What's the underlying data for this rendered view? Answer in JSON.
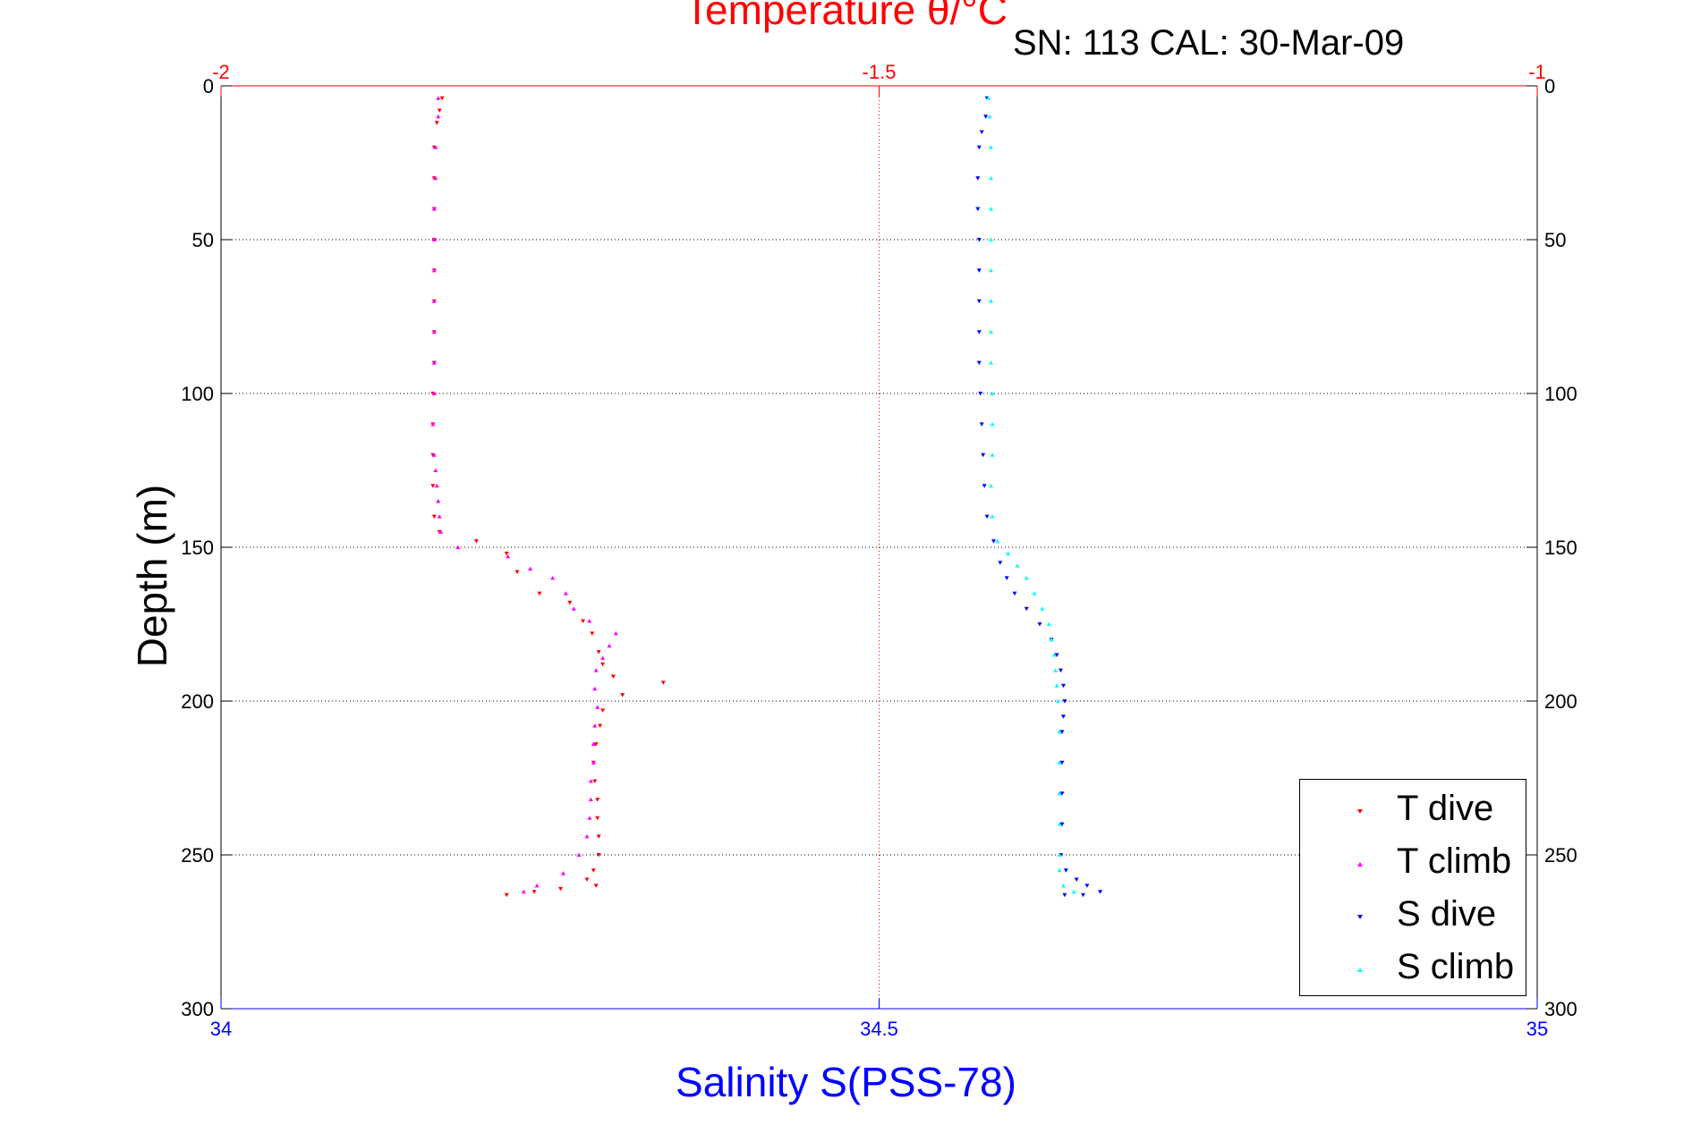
{
  "sn_label": "SN: 113  CAL: 30-Mar-09",
  "colors": {
    "temperature": "#ff0000",
    "salinity": "#0000ff",
    "t_dive": "#ff0000",
    "t_climb": "#ff00ff",
    "s_dive": "#0000ff",
    "s_climb": "#00ffff"
  },
  "chart_data": {
    "type": "scatter",
    "title": "Temperature θ/°C",
    "xlabel": "Salinity S(PSS-78)",
    "ylabel": "Depth (m)",
    "x_top": {
      "label": "Temperature θ/°C",
      "range": [
        -2,
        -1
      ],
      "ticks": [
        -2,
        -1.5,
        -1
      ],
      "tick_labels": [
        "-2",
        "-1.5",
        "-1"
      ]
    },
    "x_bottom": {
      "label": "Salinity S(PSS-78)",
      "range": [
        34,
        35
      ],
      "ticks": [
        34,
        34.5,
        35
      ],
      "tick_labels": [
        "34",
        "34.5",
        "35"
      ]
    },
    "y": {
      "range": [
        0,
        300
      ],
      "reversed": true,
      "ticks": [
        0,
        50,
        100,
        150,
        200,
        250,
        300
      ],
      "tick_labels": [
        "0",
        "50",
        "100",
        "150",
        "200",
        "250",
        "300"
      ]
    },
    "grid": true,
    "legend_position": "bottom-right",
    "series": [
      {
        "name": "T dive",
        "axis": "top",
        "marker": "triangle-down",
        "points": [
          [
            -1.832,
            4
          ],
          [
            -1.834,
            8
          ],
          [
            -1.836,
            12
          ],
          [
            -1.838,
            20
          ],
          [
            -1.838,
            30
          ],
          [
            -1.838,
            40
          ],
          [
            -1.838,
            50
          ],
          [
            -1.838,
            60
          ],
          [
            -1.838,
            70
          ],
          [
            -1.838,
            80
          ],
          [
            -1.838,
            90
          ],
          [
            -1.839,
            100
          ],
          [
            -1.839,
            110
          ],
          [
            -1.839,
            120
          ],
          [
            -1.839,
            130
          ],
          [
            -1.838,
            140
          ],
          [
            -1.834,
            145
          ],
          [
            -1.806,
            148
          ],
          [
            -1.783,
            152
          ],
          [
            -1.775,
            158
          ],
          [
            -1.758,
            165
          ],
          [
            -1.735,
            168
          ],
          [
            -1.725,
            174
          ],
          [
            -1.718,
            178
          ],
          [
            -1.713,
            184
          ],
          [
            -1.71,
            188
          ],
          [
            -1.702,
            192
          ],
          [
            -1.664,
            194
          ],
          [
            -1.695,
            198
          ],
          [
            -1.71,
            203
          ],
          [
            -1.712,
            208
          ],
          [
            -1.715,
            214
          ],
          [
            -1.717,
            220
          ],
          [
            -1.716,
            226
          ],
          [
            -1.714,
            232
          ],
          [
            -1.714,
            238
          ],
          [
            -1.713,
            244
          ],
          [
            -1.713,
            250
          ],
          [
            -1.717,
            255
          ],
          [
            -1.722,
            258
          ],
          [
            -1.715,
            260
          ],
          [
            -1.742,
            261
          ],
          [
            -1.762,
            262
          ],
          [
            -1.783,
            263
          ]
        ]
      },
      {
        "name": "T climb",
        "axis": "top",
        "marker": "triangle-up",
        "points": [
          [
            -1.835,
            4
          ],
          [
            -1.835,
            10
          ],
          [
            -1.837,
            20
          ],
          [
            -1.837,
            30
          ],
          [
            -1.838,
            40
          ],
          [
            -1.838,
            50
          ],
          [
            -1.838,
            60
          ],
          [
            -1.838,
            70
          ],
          [
            -1.838,
            80
          ],
          [
            -1.838,
            90
          ],
          [
            -1.838,
            100
          ],
          [
            -1.839,
            110
          ],
          [
            -1.838,
            120
          ],
          [
            -1.837,
            125
          ],
          [
            -1.836,
            130
          ],
          [
            -1.835,
            135
          ],
          [
            -1.834,
            140
          ],
          [
            -1.833,
            145
          ],
          [
            -1.82,
            150
          ],
          [
            -1.782,
            153
          ],
          [
            -1.765,
            157
          ],
          [
            -1.748,
            160
          ],
          [
            -1.738,
            165
          ],
          [
            -1.732,
            170
          ],
          [
            -1.72,
            174
          ],
          [
            -1.7,
            178
          ],
          [
            -1.705,
            182
          ],
          [
            -1.71,
            186
          ],
          [
            -1.715,
            190
          ],
          [
            -1.716,
            196
          ],
          [
            -1.714,
            202
          ],
          [
            -1.716,
            208
          ],
          [
            -1.717,
            214
          ],
          [
            -1.717,
            220
          ],
          [
            -1.719,
            226
          ],
          [
            -1.719,
            232
          ],
          [
            -1.72,
            238
          ],
          [
            -1.722,
            244
          ],
          [
            -1.728,
            250
          ],
          [
            -1.74,
            256
          ],
          [
            -1.76,
            260
          ],
          [
            -1.77,
            262
          ]
        ]
      },
      {
        "name": "S dive",
        "axis": "bottom",
        "marker": "triangle-down",
        "points": [
          [
            34.582,
            4
          ],
          [
            34.581,
            10
          ],
          [
            34.578,
            15
          ],
          [
            34.576,
            20
          ],
          [
            34.575,
            30
          ],
          [
            34.575,
            40
          ],
          [
            34.576,
            50
          ],
          [
            34.576,
            60
          ],
          [
            34.576,
            70
          ],
          [
            34.576,
            80
          ],
          [
            34.576,
            90
          ],
          [
            34.577,
            100
          ],
          [
            34.578,
            110
          ],
          [
            34.579,
            120
          ],
          [
            34.58,
            130
          ],
          [
            34.582,
            140
          ],
          [
            34.587,
            148
          ],
          [
            34.592,
            155
          ],
          [
            34.597,
            160
          ],
          [
            34.603,
            165
          ],
          [
            34.612,
            170
          ],
          [
            34.622,
            175
          ],
          [
            34.631,
            180
          ],
          [
            34.635,
            185
          ],
          [
            34.638,
            190
          ],
          [
            34.64,
            195
          ],
          [
            34.641,
            200
          ],
          [
            34.64,
            205
          ],
          [
            34.639,
            210
          ],
          [
            34.639,
            220
          ],
          [
            34.639,
            230
          ],
          [
            34.639,
            240
          ],
          [
            34.638,
            250
          ],
          [
            34.642,
            255
          ],
          [
            34.65,
            258
          ],
          [
            34.658,
            260
          ],
          [
            34.668,
            262
          ],
          [
            34.655,
            263
          ],
          [
            34.641,
            263
          ]
        ]
      },
      {
        "name": "S climb",
        "axis": "bottom",
        "marker": "triangle-up",
        "points": [
          [
            34.583,
            4
          ],
          [
            34.584,
            10
          ],
          [
            34.585,
            20
          ],
          [
            34.585,
            30
          ],
          [
            34.585,
            40
          ],
          [
            34.585,
            50
          ],
          [
            34.585,
            60
          ],
          [
            34.585,
            70
          ],
          [
            34.585,
            80
          ],
          [
            34.585,
            90
          ],
          [
            34.586,
            100
          ],
          [
            34.586,
            110
          ],
          [
            34.586,
            120
          ],
          [
            34.585,
            130
          ],
          [
            34.586,
            140
          ],
          [
            34.59,
            148
          ],
          [
            34.598,
            152
          ],
          [
            34.605,
            156
          ],
          [
            34.612,
            160
          ],
          [
            34.618,
            165
          ],
          [
            34.624,
            170
          ],
          [
            34.629,
            175
          ],
          [
            34.631,
            180
          ],
          [
            34.633,
            185
          ],
          [
            34.634,
            190
          ],
          [
            34.635,
            195
          ],
          [
            34.636,
            200
          ],
          [
            34.637,
            210
          ],
          [
            34.637,
            220
          ],
          [
            34.637,
            230
          ],
          [
            34.637,
            240
          ],
          [
            34.637,
            250
          ],
          [
            34.637,
            255
          ],
          [
            34.64,
            260
          ],
          [
            34.648,
            262
          ]
        ]
      }
    ]
  }
}
